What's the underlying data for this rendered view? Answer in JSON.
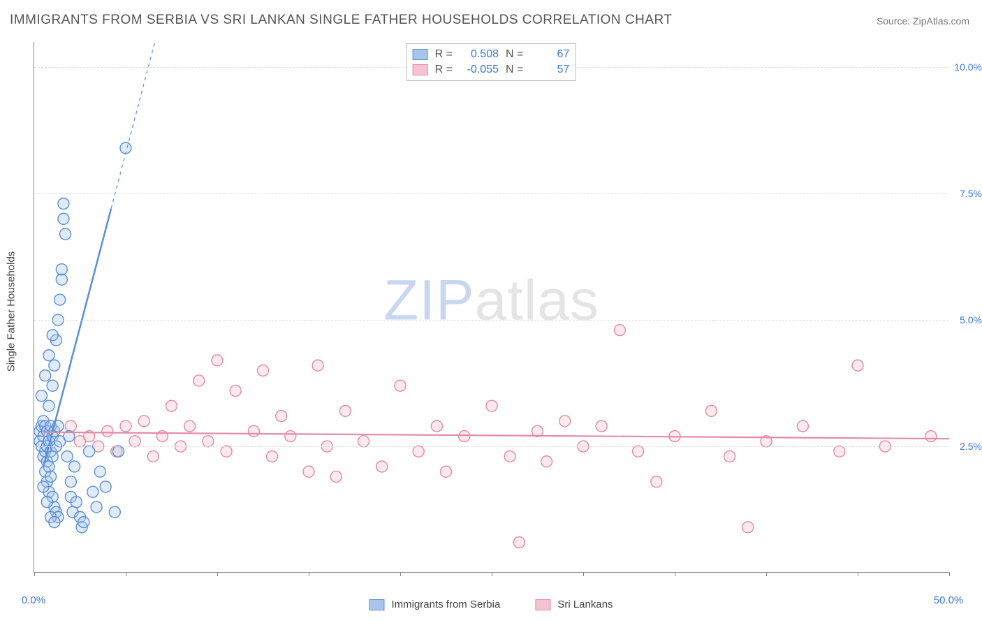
{
  "title": "IMMIGRANTS FROM SERBIA VS SRI LANKAN SINGLE FATHER HOUSEHOLDS CORRELATION CHART",
  "source_prefix": "Source: ",
  "source_name": "ZipAtlas.com",
  "y_axis_label": "Single Father Households",
  "watermark_a": "ZIP",
  "watermark_b": "atlas",
  "chart": {
    "type": "scatter",
    "xlim": [
      0,
      50
    ],
    "ylim": [
      0,
      10.5
    ],
    "x_ticks": [
      0,
      5,
      10,
      15,
      20,
      25,
      30,
      35,
      40,
      45,
      50
    ],
    "y_ticks": [
      2.5,
      5.0,
      7.5,
      10.0
    ],
    "y_tick_labels": [
      "2.5%",
      "5.0%",
      "7.5%",
      "10.0%"
    ],
    "x_origin_label": "0.0%",
    "x_max_label": "50.0%",
    "grid_color": "#dddddd",
    "axis_color": "#888888",
    "background_color": "#ffffff",
    "marker_radius": 8,
    "marker_stroke_width": 1.4,
    "fill_opacity": 0.35
  },
  "series": [
    {
      "id": "serbia",
      "label": "Immigrants from Serbia",
      "color_stroke": "#5a8fd6",
      "color_fill": "#a9c6ea",
      "value_color": "#3a78d6",
      "R": "0.508",
      "N": "67",
      "trend": {
        "x1": 0.5,
        "y1": 2.1,
        "x2": 4.2,
        "y2": 7.2,
        "dash_to_y": 10.5
      },
      "points": [
        [
          0.3,
          2.8
        ],
        [
          0.3,
          2.6
        ],
        [
          0.4,
          2.9
        ],
        [
          0.4,
          2.5
        ],
        [
          0.5,
          3.0
        ],
        [
          0.5,
          2.7
        ],
        [
          0.5,
          2.3
        ],
        [
          0.6,
          2.9
        ],
        [
          0.6,
          2.4
        ],
        [
          0.6,
          2.0
        ],
        [
          0.7,
          2.8
        ],
        [
          0.7,
          2.5
        ],
        [
          0.7,
          2.2
        ],
        [
          0.7,
          1.8
        ],
        [
          0.8,
          3.3
        ],
        [
          0.8,
          2.6
        ],
        [
          0.8,
          2.1
        ],
        [
          0.8,
          1.6
        ],
        [
          0.9,
          2.9
        ],
        [
          0.9,
          2.4
        ],
        [
          0.9,
          1.9
        ],
        [
          1.0,
          3.7
        ],
        [
          1.0,
          2.7
        ],
        [
          1.0,
          2.3
        ],
        [
          1.0,
          1.5
        ],
        [
          1.1,
          4.1
        ],
        [
          1.1,
          2.8
        ],
        [
          1.1,
          1.3
        ],
        [
          1.2,
          4.6
        ],
        [
          1.2,
          2.5
        ],
        [
          1.2,
          1.2
        ],
        [
          1.3,
          5.0
        ],
        [
          1.3,
          2.9
        ],
        [
          1.3,
          1.1
        ],
        [
          1.4,
          5.4
        ],
        [
          1.4,
          2.6
        ],
        [
          1.5,
          5.8
        ],
        [
          1.5,
          6.0
        ],
        [
          1.6,
          7.0
        ],
        [
          1.6,
          7.3
        ],
        [
          1.7,
          6.7
        ],
        [
          1.8,
          2.3
        ],
        [
          1.9,
          2.7
        ],
        [
          2.0,
          1.8
        ],
        [
          2.0,
          1.5
        ],
        [
          2.1,
          1.2
        ],
        [
          2.2,
          2.1
        ],
        [
          2.3,
          1.4
        ],
        [
          2.5,
          1.1
        ],
        [
          2.6,
          0.9
        ],
        [
          2.7,
          1.0
        ],
        [
          3.0,
          2.4
        ],
        [
          3.2,
          1.6
        ],
        [
          3.4,
          1.3
        ],
        [
          3.6,
          2.0
        ],
        [
          3.9,
          1.7
        ],
        [
          4.4,
          1.2
        ],
        [
          4.6,
          2.4
        ],
        [
          5.0,
          8.4
        ],
        [
          0.4,
          3.5
        ],
        [
          0.6,
          3.9
        ],
        [
          0.8,
          4.3
        ],
        [
          1.0,
          4.7
        ],
        [
          0.5,
          1.7
        ],
        [
          0.7,
          1.4
        ],
        [
          0.9,
          1.1
        ],
        [
          1.1,
          1.0
        ]
      ]
    },
    {
      "id": "srilankan",
      "label": "Sri Lankans",
      "color_stroke": "#e48aa4",
      "color_fill": "#f5c4d2",
      "value_color": "#3a78d6",
      "R": "-0.055",
      "N": "57",
      "trend": {
        "x1": 0.5,
        "y1": 2.78,
        "x2": 50,
        "y2": 2.65
      },
      "points": [
        [
          2.0,
          2.9
        ],
        [
          2.5,
          2.6
        ],
        [
          3.0,
          2.7
        ],
        [
          3.5,
          2.5
        ],
        [
          4.0,
          2.8
        ],
        [
          4.5,
          2.4
        ],
        [
          5.0,
          2.9
        ],
        [
          5.5,
          2.6
        ],
        [
          6.0,
          3.0
        ],
        [
          6.5,
          2.3
        ],
        [
          7.0,
          2.7
        ],
        [
          7.5,
          3.3
        ],
        [
          8.0,
          2.5
        ],
        [
          8.5,
          2.9
        ],
        [
          9.0,
          3.8
        ],
        [
          9.5,
          2.6
        ],
        [
          10.0,
          4.2
        ],
        [
          10.5,
          2.4
        ],
        [
          11.0,
          3.6
        ],
        [
          12.0,
          2.8
        ],
        [
          12.5,
          4.0
        ],
        [
          13.0,
          2.3
        ],
        [
          13.5,
          3.1
        ],
        [
          14.0,
          2.7
        ],
        [
          15.0,
          2.0
        ],
        [
          15.5,
          4.1
        ],
        [
          16.0,
          2.5
        ],
        [
          16.5,
          1.9
        ],
        [
          17.0,
          3.2
        ],
        [
          18.0,
          2.6
        ],
        [
          19.0,
          2.1
        ],
        [
          20.0,
          3.7
        ],
        [
          21.0,
          2.4
        ],
        [
          22.0,
          2.9
        ],
        [
          22.5,
          2.0
        ],
        [
          23.5,
          2.7
        ],
        [
          25.0,
          3.3
        ],
        [
          26.0,
          2.3
        ],
        [
          26.5,
          0.6
        ],
        [
          27.5,
          2.8
        ],
        [
          28.0,
          2.2
        ],
        [
          29.0,
          3.0
        ],
        [
          30.0,
          2.5
        ],
        [
          31.0,
          2.9
        ],
        [
          32.0,
          4.8
        ],
        [
          33.0,
          2.4
        ],
        [
          34.0,
          1.8
        ],
        [
          35.0,
          2.7
        ],
        [
          37.0,
          3.2
        ],
        [
          38.0,
          2.3
        ],
        [
          39.0,
          0.9
        ],
        [
          40.0,
          2.6
        ],
        [
          42.0,
          2.9
        ],
        [
          44.0,
          2.4
        ],
        [
          45.0,
          4.1
        ],
        [
          46.5,
          2.5
        ],
        [
          49.0,
          2.7
        ]
      ]
    }
  ],
  "stats_legend": {
    "R_label": "R =",
    "N_label": "N ="
  },
  "bottom_legend_labels": [
    "Immigrants from Serbia",
    "Sri Lankans"
  ]
}
